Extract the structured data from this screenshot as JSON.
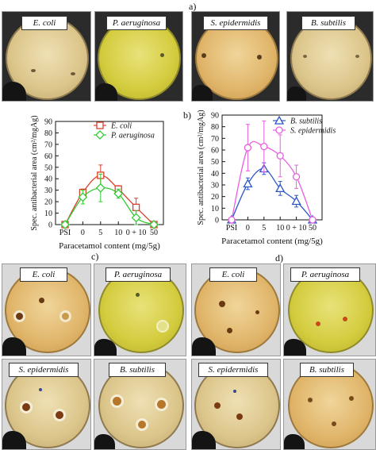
{
  "panel_labels": {
    "a": "a)",
    "b": "b)",
    "c": "c)",
    "d": "d)"
  },
  "photos_a": [
    "E. coli",
    "P. aeruginosa",
    "S. epidermidis",
    "B. subtilis"
  ],
  "photos_c": [
    "E. coli",
    "P. aeruginosa",
    "S. epidermidis",
    "B. subtilis"
  ],
  "photos_d": [
    "E. coli",
    "P. aeruginosa",
    "S. epidermidis",
    "B. subtilis"
  ],
  "colors": {
    "e_coli": "#d9412b",
    "p_aeruginosa": "#33cc33",
    "b_subtilis": "#2d55c8",
    "s_epidermidis": "#e85fe0"
  },
  "chart_data": [
    {
      "type": "line",
      "categories": [
        "PSI",
        "0",
        "5",
        "10",
        "0 + 10",
        "50"
      ],
      "ylabel": "Spec. antibacterial area (cm²/mgAg)",
      "xlabel": "Paracetamol content (mg/5g)",
      "ylim": [
        0,
        90
      ],
      "yticks": [
        0,
        10,
        20,
        30,
        40,
        50,
        60,
        70,
        80,
        90
      ],
      "legend": "top-right",
      "series": [
        {
          "name": "E. coli",
          "marker": "square",
          "color": "#d9412b",
          "values": [
            0,
            28,
            43,
            31,
            15,
            0
          ],
          "errors": [
            0,
            3,
            9,
            3,
            8,
            0
          ]
        },
        {
          "name": "P. aeruginosa",
          "marker": "diamond",
          "color": "#33cc33",
          "values": [
            0,
            24,
            32,
            27,
            6,
            0
          ],
          "errors": [
            0,
            6,
            12,
            4,
            6,
            0
          ]
        }
      ]
    },
    {
      "type": "line",
      "categories": [
        "PSI",
        "0",
        "5",
        "10",
        "0 + 10",
        "50"
      ],
      "ylabel": "Spec. antibacterial area (cm²/mgAg)",
      "xlabel": "Paracetamol content (mg/5g)",
      "ylim": [
        0,
        90
      ],
      "yticks": [
        0,
        10,
        20,
        30,
        40,
        50,
        60,
        70,
        80,
        90
      ],
      "legend": "top-right",
      "series": [
        {
          "name": "B. subtilis",
          "marker": "triangle",
          "color": "#2d55c8",
          "values": [
            0,
            31,
            44,
            27,
            16,
            0
          ],
          "errors": [
            0,
            5,
            5,
            6,
            5,
            0
          ]
        },
        {
          "name": "S. epidermidis",
          "marker": "circle",
          "color": "#e85fe0",
          "values": [
            0,
            62,
            63,
            55,
            37,
            0
          ],
          "errors": [
            0,
            20,
            22,
            18,
            10,
            0
          ]
        }
      ]
    }
  ]
}
